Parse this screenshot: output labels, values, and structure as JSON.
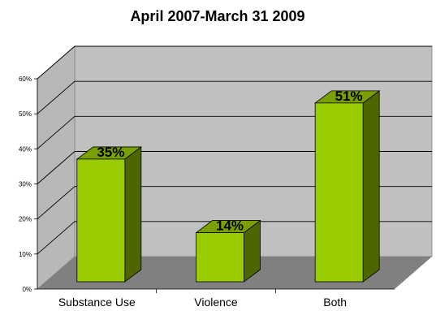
{
  "chart_data": {
    "type": "bar",
    "title": "April 2007-March 31 2009",
    "categories": [
      "Substance Use",
      "Violence",
      "Both"
    ],
    "values": [
      35,
      14,
      51
    ],
    "data_labels": [
      "35%",
      "14%",
      "51%"
    ],
    "y_ticks": [
      "0%",
      "10%",
      "20%",
      "30%",
      "40%",
      "50%",
      "60%"
    ],
    "ylim": [
      0,
      60
    ],
    "grid": true,
    "legend": "none",
    "style": "3d",
    "colors": {
      "bar_front": "#99CC00",
      "bar_side": "#4D6600",
      "bar_top": "#7A9F00",
      "wall": "#C0C0C0",
      "floor": "#808080",
      "gridline": "#000000"
    }
  }
}
